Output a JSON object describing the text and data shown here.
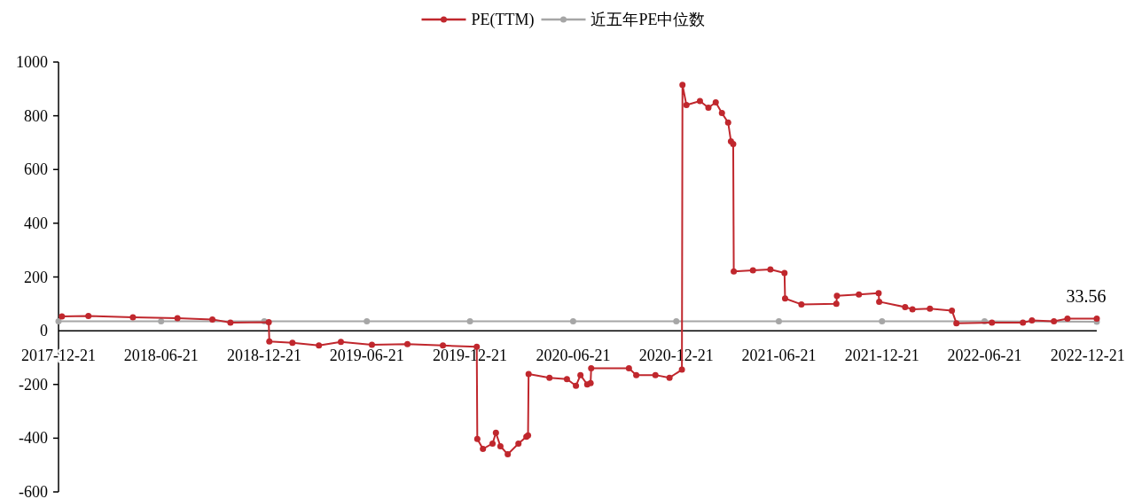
{
  "chart_data": {
    "type": "line",
    "marker": "circle",
    "line_style": "solid",
    "legend": "top",
    "grid": false,
    "series": [
      {
        "name": "PE(TTM)",
        "color": "#c0272d",
        "x": [
          "2017-12-27",
          "2018-02-12",
          "2018-05-02",
          "2018-07-20",
          "2018-09-20",
          "2018-10-22",
          "2018-12-29",
          "2018-12-30",
          "2019-02-09",
          "2019-03-28",
          "2019-05-06",
          "2019-06-30",
          "2019-09-01",
          "2019-11-03",
          "2020-01-02",
          "2020-01-03",
          "2020-01-13",
          "2020-01-30",
          "2020-02-05",
          "2020-02-13",
          "2020-02-26",
          "2020-03-16",
          "2020-03-30",
          "2020-04-02",
          "2020-04-03",
          "2020-05-10",
          "2020-06-10",
          "2020-06-26",
          "2020-07-04",
          "2020-07-16",
          "2020-07-22",
          "2020-07-23",
          "2020-09-28",
          "2020-10-11",
          "2020-11-14",
          "2020-12-09",
          "2020-12-31",
          "2021-01-01",
          "2021-01-08",
          "2021-02-01",
          "2021-02-16",
          "2021-03-01",
          "2021-03-12",
          "2021-03-23",
          "2021-03-28",
          "2021-04-01",
          "2021-04-02",
          "2021-05-06",
          "2021-06-06",
          "2021-07-01",
          "2021-07-02",
          "2021-07-31",
          "2021-10-01",
          "2021-10-02",
          "2021-11-10",
          "2021-12-15",
          "2021-12-16",
          "2022-01-31",
          "2022-02-13",
          "2022-03-16",
          "2022-04-24",
          "2022-05-02",
          "2022-07-04",
          "2022-08-28",
          "2022-09-13",
          "2022-10-22",
          "2022-11-15",
          "2023-01-06"
        ],
        "values": [
          53,
          55,
          50,
          47,
          42,
          30,
          32,
          -40,
          -45,
          -55,
          -42,
          -52,
          -50,
          -55,
          -60,
          -403,
          -440,
          -420,
          -380,
          -430,
          -460,
          -420,
          -395,
          -390,
          -161,
          -175,
          -180,
          -205,
          -165,
          -200,
          -195,
          -140,
          -140,
          -165,
          -165,
          -175,
          -145,
          915,
          840,
          855,
          830,
          850,
          810,
          775,
          705,
          695,
          221,
          225,
          228,
          215,
          120,
          98,
          100,
          130,
          135,
          140,
          108,
          88,
          80,
          82,
          75,
          28,
          30,
          30,
          38,
          35,
          45,
          45
        ]
      },
      {
        "name": "近五年PE中位数",
        "color": "#a6a6a6",
        "x": [
          "2017-12-21",
          "2018-06-21",
          "2018-12-21",
          "2019-06-21",
          "2019-12-21",
          "2020-06-21",
          "2020-12-21",
          "2021-06-21",
          "2021-12-21",
          "2022-06-21",
          "2023-01-06"
        ],
        "values": [
          35,
          35,
          35,
          35,
          35,
          35,
          35,
          35,
          35,
          35,
          33.56
        ]
      }
    ],
    "xlim": [
      "2017-12-21",
      "2023-01-06"
    ],
    "xticks": [
      "2017-12-21",
      "2018-06-21",
      "2018-12-21",
      "2019-06-21",
      "2019-12-21",
      "2020-06-21",
      "2020-12-21",
      "2021-06-21",
      "2021-12-21",
      "2022-06-21",
      "2022-12-21"
    ],
    "ylim": [
      -600,
      1000
    ],
    "yticks": [
      -600,
      -400,
      -200,
      0,
      200,
      400,
      600,
      800,
      1000
    ],
    "annotations": [
      {
        "text": "33.56",
        "x": "2023-01-06",
        "y": 33.56
      }
    ]
  }
}
